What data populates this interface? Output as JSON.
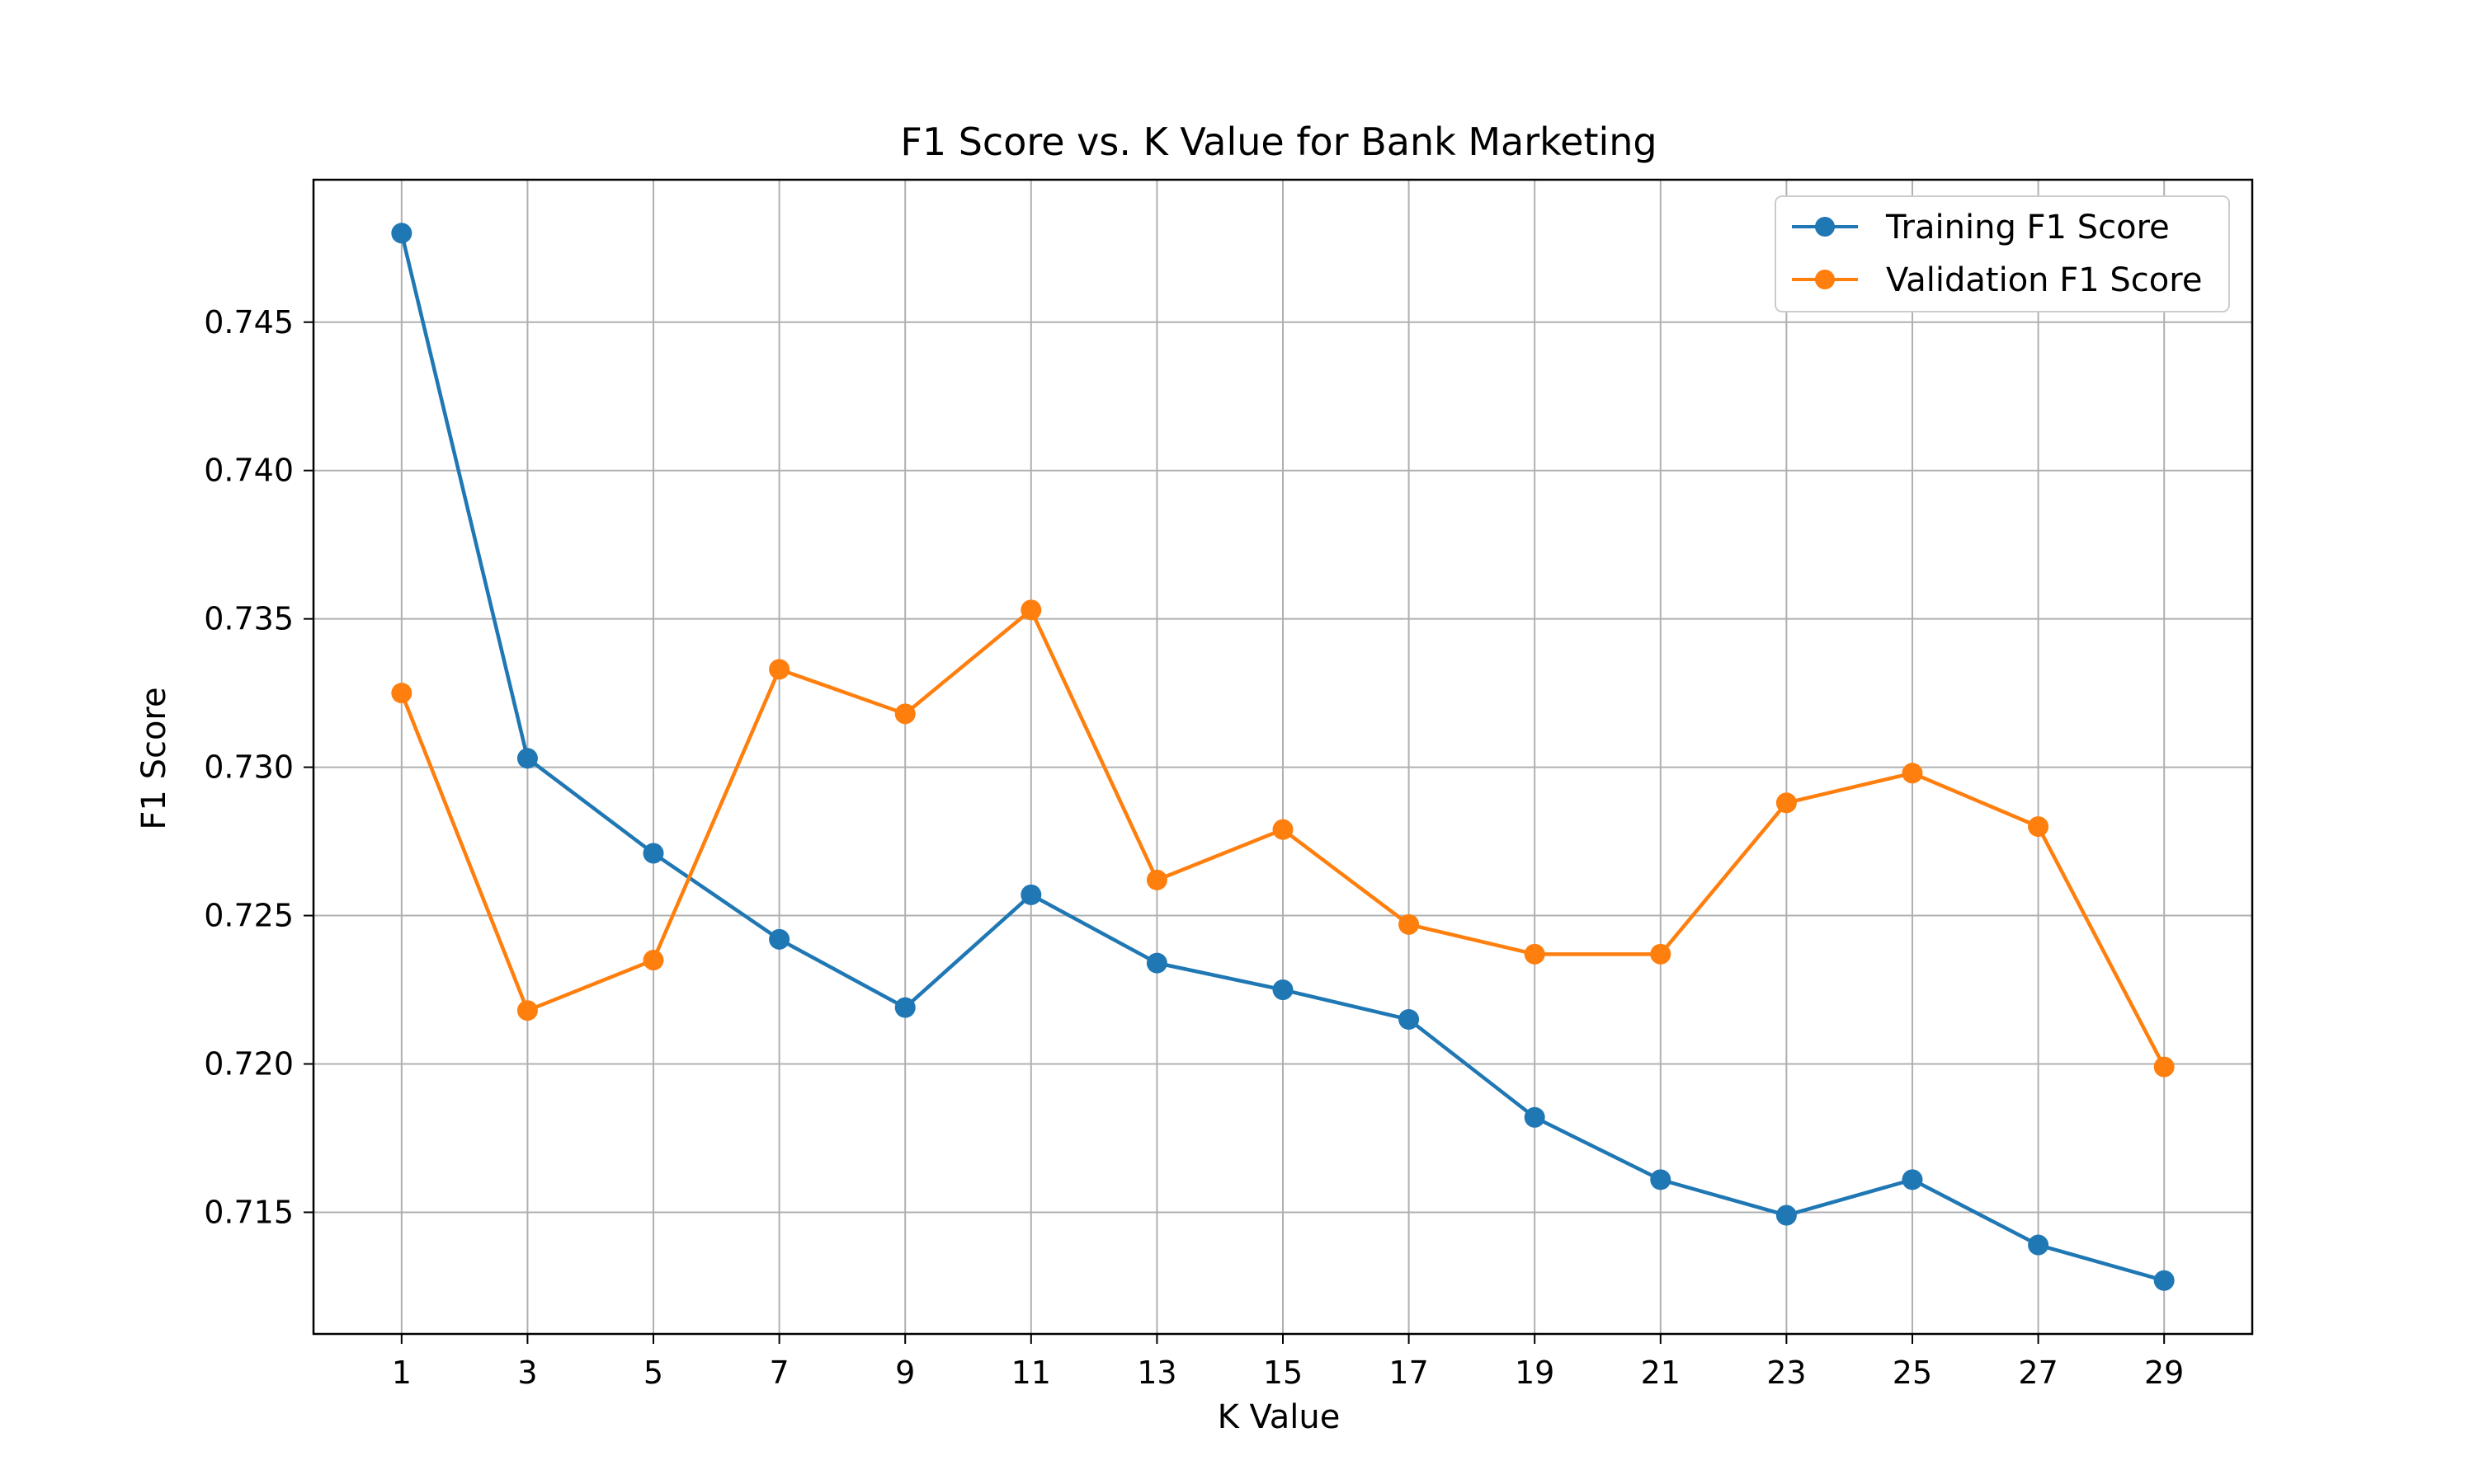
{
  "chart_data": {
    "type": "line",
    "title": "F1 Score vs. K Value for Bank Marketing",
    "xlabel": "K Value",
    "ylabel": "F1 Score",
    "x": [
      1,
      3,
      5,
      7,
      9,
      11,
      13,
      15,
      17,
      19,
      21,
      23,
      25,
      27,
      29
    ],
    "xticks": [
      "1",
      "3",
      "5",
      "7",
      "9",
      "11",
      "13",
      "15",
      "17",
      "19",
      "21",
      "23",
      "25",
      "27",
      "29"
    ],
    "yticks": [
      "0.715",
      "0.720",
      "0.725",
      "0.730",
      "0.735",
      "0.740",
      "0.745"
    ],
    "xlim": [
      -0.4,
      30.4
    ],
    "ylim": [
      0.7109,
      0.7498
    ],
    "grid": true,
    "legend_position": "top-right",
    "series": [
      {
        "name": "Training F1 Score",
        "color": "#1f77b4",
        "marker": "circle",
        "values": [
          0.748,
          0.7303,
          0.7271,
          0.7242,
          0.7219,
          0.7257,
          0.7234,
          0.7225,
          0.7215,
          0.7182,
          0.7161,
          0.7149,
          0.7161,
          0.7139,
          0.7127
        ]
      },
      {
        "name": "Validation F1 Score",
        "color": "#ff7f0e",
        "marker": "circle",
        "values": [
          0.7325,
          0.7218,
          0.7235,
          0.7333,
          0.7318,
          0.7353,
          0.7262,
          0.7279,
          0.7247,
          0.7237,
          0.7237,
          0.7288,
          0.7298,
          0.728,
          0.7199
        ]
      }
    ]
  }
}
